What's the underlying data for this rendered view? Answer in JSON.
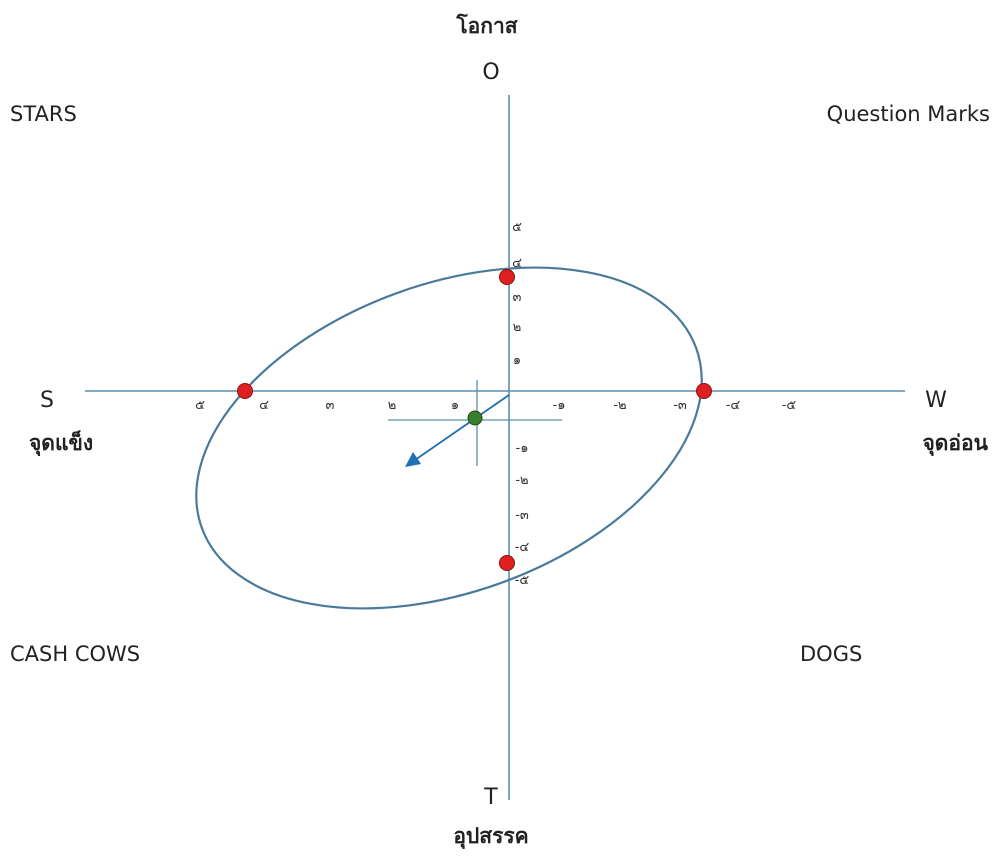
{
  "axes": {
    "top_thai": "โอกาส",
    "top_letter": "O",
    "bottom_letter": "T",
    "bottom_thai": "อุปสรรค",
    "left_letter": "S",
    "left_thai": "จุดแข็ง",
    "right_letter": "W",
    "right_thai": "จุดอ่อน"
  },
  "quadrants": {
    "top_left": "STARS",
    "top_right": "Question Marks",
    "bottom_left": "CASH COWS",
    "bottom_right": "DOGS"
  },
  "ticks": {
    "left": [
      "๕",
      "๔",
      "๓",
      "๒",
      "๑"
    ],
    "right": [
      "-๑",
      "-๒",
      "-๓",
      "-๔",
      "-๕"
    ],
    "up": [
      "๕",
      "๔",
      "๓",
      "๒",
      "๑"
    ],
    "down": [
      "-๑",
      "-๒",
      "-๓",
      "-๔",
      "-๕"
    ]
  },
  "colors": {
    "axis": "#5b8fb0",
    "ellipse": "#4a7a9a",
    "red_point": "#e02020",
    "green_point": "#3a7d2c",
    "arrow": "#1f6fb5"
  }
}
